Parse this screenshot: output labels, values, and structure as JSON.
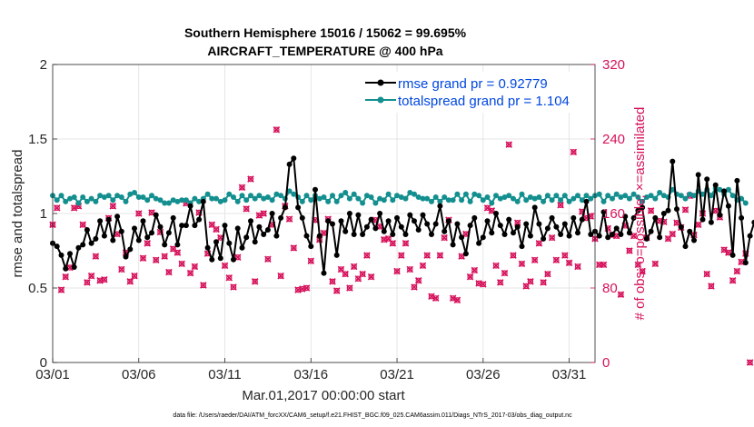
{
  "chart_data": {
    "type": "line",
    "title": "Southern Hemisphere 15016 / 15062 = 99.695%",
    "subtitle": "AIRCRAFT_TEMPERATURE @ 400 hPa",
    "xlabel": "Mar.01,2017 00:00:00 start",
    "ylabel": "rmse and totalspread",
    "ylabel_right": "# of obs: o=possible; ×=assimilated",
    "footer": "data file: /Users/raeder/DAI/ATM_forcXX/CAM6_setup/f.e21.FHIST_BGC.f09_025.CAM6assim.011/Diags_NTrS_2017-03/obs_diag_output.nc",
    "x_ticks": [
      "03/01",
      "03/06",
      "03/11",
      "03/16",
      "03/21",
      "03/26",
      "03/31"
    ],
    "x_tick_days": [
      0,
      5,
      10,
      15,
      20,
      25,
      30
    ],
    "xlim": [
      0,
      31.5
    ],
    "ylim": [
      0,
      2
    ],
    "y_ticks": [
      "0",
      "0.5",
      "1",
      "1.5",
      "2"
    ],
    "y2lim": [
      0,
      320
    ],
    "y2_ticks": [
      "0",
      "80",
      "160",
      "240",
      "320"
    ],
    "grid": true,
    "legend_position": "top-right",
    "colors": {
      "rmse": "#000000",
      "spread": "#148f8f",
      "obs": "#d6105a",
      "legend_text": "#0047e0"
    },
    "series": [
      {
        "name": "rmse grand pr = 0.92779",
        "x_start": 0,
        "x_step": 0.25,
        "values": [
          0.8,
          0.78,
          0.72,
          0.63,
          0.73,
          0.64,
          0.77,
          0.79,
          0.89,
          0.8,
          0.83,
          0.95,
          0.85,
          0.96,
          0.82,
          0.98,
          0.88,
          0.71,
          0.76,
          0.9,
          0.82,
          0.95,
          0.84,
          0.87,
          0.99,
          0.91,
          0.79,
          0.87,
          0.97,
          0.79,
          0.92,
          0.92,
          1.05,
          0.92,
          0.96,
          1.08,
          0.77,
          0.69,
          0.81,
          0.7,
          0.92,
          0.8,
          0.69,
          0.9,
          0.77,
          0.84,
          0.95,
          0.81,
          0.91,
          0.86,
          0.89,
          1.0,
          0.85,
          0.97,
          1.04,
          1.33,
          1.37,
          1.04,
          0.97,
          0.85,
          0.78,
          1.16,
          0.85,
          0.6,
          0.95,
          0.93,
          0.72,
          0.95,
          0.88,
          1.0,
          0.86,
          0.99,
          0.86,
          0.91,
          0.96,
          0.9,
          1.0,
          0.88,
          0.95,
          0.86,
          0.97,
          0.91,
          0.86,
          0.99,
          0.95,
          0.89,
          0.99,
          0.93,
          0.86,
          0.93,
          1.05,
          0.88,
          0.95,
          0.79,
          0.93,
          0.84,
          0.73,
          0.92,
          0.97,
          0.8,
          0.84,
          0.95,
          0.87,
          1.0,
          0.92,
          0.86,
          0.96,
          0.87,
          0.91,
          0.78,
          0.93,
          0.85,
          1.04,
          0.93,
          0.83,
          0.9,
          0.97,
          0.91,
          0.86,
          0.93,
          0.85,
          0.97,
          0.87,
          0.96,
          1.08,
          0.86,
          0.88,
          0.85,
          1.01,
          0.84,
          0.86,
          0.9,
          0.86,
          0.98,
          0.87,
          0.97,
          1.02,
          1.04,
          0.83,
          0.88,
          0.97,
          0.84,
          1.0,
          1.02,
          1.35,
          1.03,
          0.91,
          0.78,
          0.88,
          0.82,
          1.26,
          0.96,
          1.23,
          0.94,
          1.19,
          0.99,
          1.15,
          1.05,
          0.72,
          1.22,
          0.97,
          0.67,
          0.85,
          0.94
        ]
      },
      {
        "name": "totalspread grand pr = 1.104",
        "x_start": 0,
        "x_step": 0.25,
        "values": [
          1.12,
          1.09,
          1.12,
          1.08,
          1.1,
          1.11,
          1.07,
          1.11,
          1.08,
          1.1,
          1.08,
          1.12,
          1.11,
          1.12,
          1.09,
          1.12,
          1.11,
          1.08,
          1.13,
          1.14,
          1.11,
          1.11,
          1.09,
          1.12,
          1.1,
          1.09,
          1.07,
          1.07,
          1.09,
          1.08,
          1.09,
          1.09,
          1.07,
          1.1,
          1.08,
          1.1,
          1.13,
          1.1,
          1.1,
          1.08,
          1.09,
          1.13,
          1.11,
          1.08,
          1.12,
          1.09,
          1.12,
          1.1,
          1.12,
          1.1,
          1.11,
          1.09,
          1.13,
          1.12,
          1.1,
          1.15,
          1.13,
          1.11,
          1.08,
          1.12,
          1.09,
          1.12,
          1.1,
          1.11,
          1.08,
          1.12,
          1.08,
          1.12,
          1.14,
          1.1,
          1.13,
          1.1,
          1.07,
          1.12,
          1.11,
          1.07,
          1.1,
          1.09,
          1.13,
          1.09,
          1.12,
          1.11,
          1.1,
          1.14,
          1.13,
          1.11,
          1.1,
          1.1,
          1.08,
          1.11,
          1.08,
          1.11,
          1.09,
          1.09,
          1.13,
          1.09,
          1.13,
          1.08,
          1.13,
          1.12,
          1.09,
          1.11,
          1.07,
          1.12,
          1.1,
          1.11,
          1.12,
          1.1,
          1.08,
          1.13,
          1.09,
          1.11,
          1.1,
          1.11,
          1.08,
          1.12,
          1.09,
          1.12,
          1.09,
          1.12,
          1.08,
          1.1,
          1.12,
          1.09,
          1.12,
          1.1,
          1.12,
          1.13,
          1.08,
          1.12,
          1.1,
          1.13,
          1.11,
          1.12,
          1.1,
          1.13,
          1.11,
          1.08,
          1.11,
          1.12,
          1.1,
          1.14,
          1.12,
          1.11,
          1.16,
          1.13,
          1.12,
          1.1,
          1.13,
          1.12,
          1.15,
          1.13,
          1.16,
          1.12,
          1.17,
          1.16,
          1.13,
          1.16,
          1.12,
          1.09,
          1.1,
          1.07
        ]
      }
    ],
    "obs_series": {
      "name": "# of obs",
      "x_start": 0,
      "x_step": 0.25,
      "axis": "right",
      "values": [
        148,
        166,
        78,
        92,
        102,
        166,
        168,
        148,
        86,
        93,
        114,
        88,
        89,
        155,
        168,
        138,
        100,
        118,
        87,
        93,
        160,
        112,
        128,
        161,
        110,
        140,
        114,
        97,
        122,
        118,
        106,
        171,
        96,
        103,
        161,
        83,
        117,
        148,
        143,
        134,
        104,
        91,
        81,
        113,
        188,
        165,
        197,
        87,
        158,
        160,
        111,
        148,
        250,
        93,
        168,
        154,
        123,
        78,
        79,
        80,
        109,
        153,
        132,
        139,
        154,
        87,
        77,
        100,
        95,
        80,
        103,
        90,
        95,
        115,
        92,
        153,
        146,
        132,
        133,
        128,
        98,
        115,
        128,
        100,
        81,
        88,
        104,
        115,
        71,
        69,
        115,
        134,
        153,
        69,
        67,
        114,
        138,
        92,
        99,
        85,
        84,
        166,
        163,
        104,
        86,
        96,
        234,
        115,
        150,
        106,
        82,
        87,
        110,
        128,
        86,
        95,
        134,
        110,
        169,
        115,
        107,
        226,
        103,
        162,
        155,
        157,
        133,
        105,
        105,
        144,
        137,
        136,
        73,
        147,
        120,
        136,
        105,
        98,
        134,
        163,
        106,
        152,
        151,
        133,
        138,
        150,
        145,
        164,
        179,
        137,
        148,
        160,
        95,
        82,
        163,
        156,
        121,
        118,
        88,
        98,
        108,
        117,
        0
      ]
    }
  },
  "legend": [
    {
      "label": "rmse grand pr = 0.92779",
      "color": "#000000"
    },
    {
      "label": "totalspread grand pr = 1.104",
      "color": "#148f8f"
    }
  ]
}
